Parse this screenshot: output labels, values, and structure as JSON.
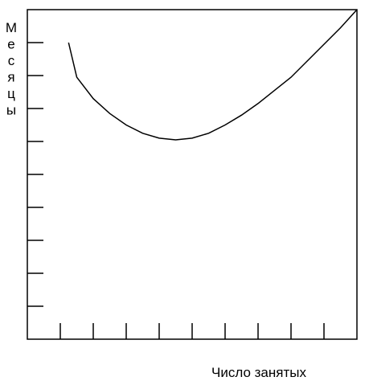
{
  "chart_data": {
    "type": "line",
    "title": "",
    "xlabel": "Число занятых",
    "ylabel": "Месяцы",
    "xlim": [
      0,
      10
    ],
    "ylim": [
      0,
      10
    ],
    "x_ticks": 9,
    "y_ticks": 9,
    "grid": false,
    "series": [
      {
        "x": [
          1.25,
          1.5,
          2.0,
          2.5,
          3.0,
          3.5,
          4.0,
          4.5,
          5.0,
          5.5,
          6.0,
          6.5,
          7.0,
          7.5,
          8.0,
          8.5,
          9.0,
          9.5,
          10.0
        ],
        "y": [
          9.0,
          7.95,
          7.3,
          6.85,
          6.5,
          6.25,
          6.1,
          6.05,
          6.1,
          6.25,
          6.5,
          6.8,
          7.15,
          7.55,
          7.95,
          8.45,
          8.95,
          9.45,
          10.0
        ],
        "color": "#000000"
      }
    ]
  }
}
